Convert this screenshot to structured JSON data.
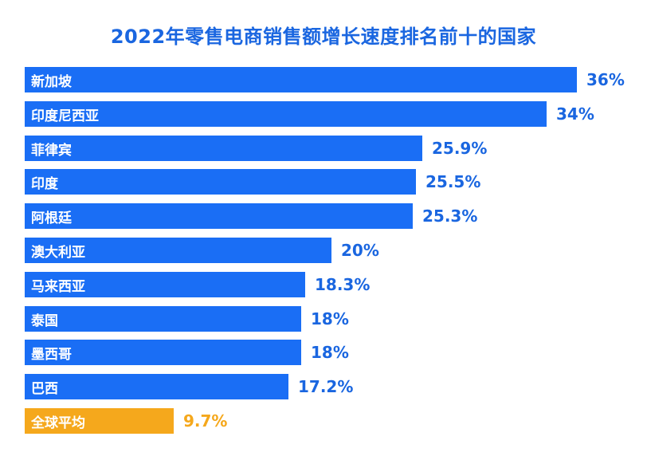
{
  "colors": {
    "title": "#1a66e0",
    "bar": "#1a6ef5",
    "value": "#1a66e0",
    "average_bar": "#f5a81c",
    "average_value": "#f5a81c"
  },
  "chart_data": {
    "type": "bar",
    "orientation": "horizontal",
    "title": "2022年零售电商销售额增长速度排名前十的国家",
    "categories": [
      "新加坡",
      "印度尼西亚",
      "菲律宾",
      "印度",
      "阿根廷",
      "澳大利亚",
      "马来西亚",
      "泰国",
      "墨西哥",
      "巴西",
      "全球平均"
    ],
    "values": [
      36,
      34,
      25.9,
      25.5,
      25.3,
      20,
      18.3,
      18,
      18,
      17.2,
      9.7
    ],
    "value_labels": [
      "36%",
      "34%",
      "25.9%",
      "25.5%",
      "25.3%",
      "20%",
      "18.3%",
      "18%",
      "18%",
      "17.2%",
      "9.7%"
    ],
    "highlight_category": "全球平均",
    "xlim": [
      0,
      36
    ],
    "xlabel": "",
    "ylabel": "",
    "grid": false
  }
}
